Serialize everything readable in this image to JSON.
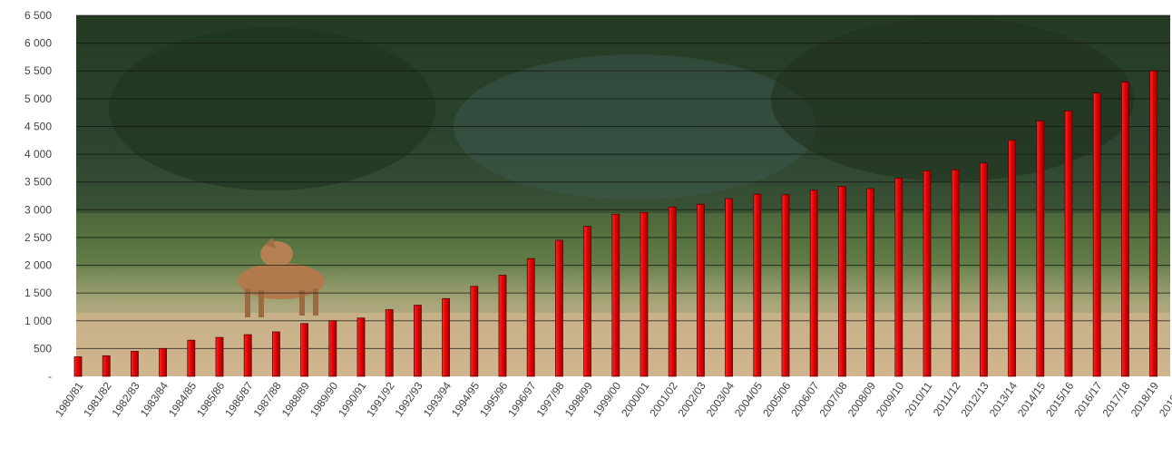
{
  "chart_data": {
    "type": "bar",
    "title": "",
    "xlabel": "",
    "ylabel": "",
    "ylim": [
      0,
      6500
    ],
    "yticks": [
      0,
      500,
      1000,
      1500,
      2000,
      2500,
      3000,
      3500,
      4000,
      4500,
      5000,
      5500,
      6000,
      6500
    ],
    "ytick_labels": [
      "-",
      "500",
      "1 000",
      "1 500",
      "2 000",
      "2 500",
      "3 000",
      "3 500",
      "4 000",
      "4 500",
      "5 000",
      "5 500",
      "6 000",
      "6 500"
    ],
    "grid": true,
    "bar_color": "#e00000",
    "background": "photo of deer in a field in front of dark trees",
    "categories": [
      "1980/81",
      "1981/82",
      "1982/83",
      "1983/84",
      "1984/85",
      "1985/86",
      "1986/87",
      "1987/88",
      "1988/89",
      "1989/90",
      "1990/91",
      "1991/92",
      "1992/93",
      "1993/94",
      "1994/95",
      "1995/96",
      "1996/97",
      "1997/98",
      "1998/99",
      "1999/00",
      "2000/01",
      "2001/02",
      "2002/03",
      "2003/04",
      "2004/05",
      "2005/06",
      "2006/07",
      "2007/08",
      "2008/09",
      "2009/10",
      "2010/11",
      "2011/12",
      "2012/13",
      "2013/14",
      "2014/15",
      "2015/16",
      "2016/17",
      "2017/18",
      "2018/19",
      "2019/20"
    ],
    "values": [
      350,
      370,
      450,
      500,
      650,
      700,
      750,
      800,
      950,
      1000,
      1050,
      1200,
      1280,
      1400,
      1620,
      1820,
      2120,
      2450,
      2700,
      2920,
      2950,
      3050,
      3100,
      3200,
      3280,
      3270,
      3350,
      3420,
      3380,
      3570,
      3700,
      3720,
      3840,
      4250,
      4600,
      4780,
      5100,
      5300,
      5500,
      0
    ]
  }
}
